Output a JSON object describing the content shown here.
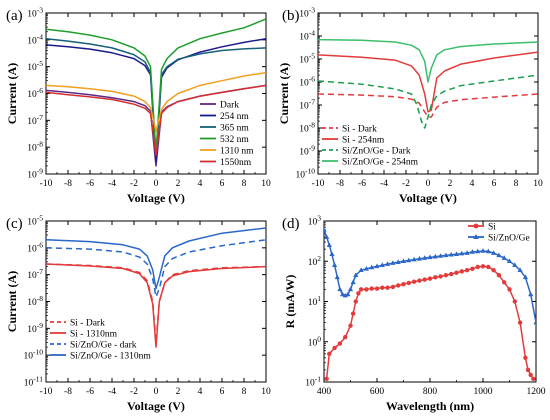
{
  "chart_data": [
    {
      "id": "a",
      "panel_label": "(a)",
      "type": "line",
      "xlabel": "Voltage (V)",
      "ylabel": "Current (A)",
      "xlim": [
        -10,
        10
      ],
      "ylim_log10": [
        -9,
        -3
      ],
      "yscale": "log",
      "x_ticks": [
        -10,
        -8,
        -6,
        -4,
        -2,
        0,
        2,
        4,
        6,
        8,
        10
      ],
      "x_tick_labels": [
        "-10",
        "-8",
        "-6",
        "-4",
        "-2",
        "0",
        "2",
        "4",
        "6",
        "8",
        "10"
      ],
      "y_tick_exponents": [
        -9,
        -8,
        -7,
        -6,
        -5,
        -4,
        -3
      ],
      "legend_position": "bottom-right",
      "series": [
        {
          "name": "Dark",
          "color": "#5b2a86",
          "style": "solid",
          "x": [
            -10,
            -8,
            -6,
            -4,
            -2,
            -1,
            -0.5,
            0,
            0.5,
            1,
            2,
            4,
            6,
            8,
            10
          ],
          "y": [
            1.3e-06,
            1.1e-06,
            9e-07,
            7e-07,
            5e-07,
            3.5e-07,
            2.2e-07,
            2e-09,
            2e-07,
            3.2e-07,
            5e-07,
            8e-07,
            1.1e-06,
            1.5e-06,
            2e-06
          ]
        },
        {
          "name": "254 nm",
          "color": "#1a1a8c",
          "style": "solid",
          "x": [
            -10,
            -8,
            -6,
            -4,
            -2,
            -1,
            -0.5,
            0,
            0.5,
            1,
            2,
            4,
            6,
            8,
            10
          ],
          "y": [
            6.5e-05,
            5.5e-05,
            4.5e-05,
            3.3e-05,
            2e-05,
            1.1e-05,
            5e-06,
            3e-09,
            4e-06,
            9e-06,
            1.8e-05,
            3.5e-05,
            5.5e-05,
            8e-05,
            0.00011
          ]
        },
        {
          "name": "365 nm",
          "color": "#17617a",
          "style": "solid",
          "x": [
            -10,
            -8,
            -6,
            -4,
            -2,
            -1,
            -0.5,
            0,
            0.5,
            1,
            2,
            4,
            6,
            8,
            10
          ],
          "y": [
            0.00011,
            9e-05,
            7e-05,
            5e-05,
            2.8e-05,
            1.5e-05,
            6e-06,
            5e-09,
            5e-06,
            1e-05,
            1.9e-05,
            3e-05,
            4e-05,
            4.6e-05,
            5e-05
          ]
        },
        {
          "name": "532 nm",
          "color": "#1f9e2e",
          "style": "solid",
          "x": [
            -10,
            -8,
            -6,
            -4,
            -2,
            -1,
            -0.5,
            0,
            0.5,
            1,
            2,
            4,
            6,
            8,
            10
          ],
          "y": [
            0.00025,
            0.0002,
            0.00015,
            0.0001,
            5e-05,
            2.5e-05,
            1e-05,
            6e-09,
            8e-06,
            2e-05,
            5e-05,
            0.00011,
            0.00018,
            0.00028,
            0.0006
          ]
        },
        {
          "name": "1310 nm",
          "color": "#f2a01f",
          "style": "solid",
          "x": [
            -10,
            -8,
            -6,
            -4,
            -2,
            -1,
            -0.5,
            0,
            0.5,
            1,
            2,
            4,
            6,
            8,
            10
          ],
          "y": [
            2e-06,
            1.8e-06,
            1.5e-06,
            1.2e-06,
            8e-07,
            5e-07,
            3e-07,
            4e-08,
            2.5e-07,
            5e-07,
            1e-06,
            2e-06,
            3e-06,
            4.5e-06,
            6e-06
          ]
        },
        {
          "name": "1550nm",
          "color": "#d42f2f",
          "style": "solid",
          "x": [
            -10,
            -8,
            -6,
            -4,
            -2,
            -1,
            -0.5,
            0,
            0.5,
            1,
            2,
            4,
            6,
            8,
            10
          ],
          "y": [
            1.1e-06,
            9e-07,
            7.5e-07,
            6e-07,
            4e-07,
            2.8e-07,
            1.8e-07,
            5e-09,
            1.8e-07,
            3e-07,
            5e-07,
            8e-07,
            1.1e-06,
            1.5e-06,
            2e-06
          ]
        }
      ]
    },
    {
      "id": "b",
      "panel_label": "(b)",
      "type": "line",
      "xlabel": "Voltage (V)",
      "ylabel": "Current (A)",
      "xlim": [
        -10,
        10
      ],
      "ylim_log10": [
        -10,
        -3
      ],
      "yscale": "log",
      "x_ticks": [
        -10,
        -8,
        -6,
        -4,
        -2,
        0,
        2,
        4,
        6,
        8,
        10
      ],
      "x_tick_labels": [
        "-10",
        "-8",
        "-6",
        "-4",
        "-2",
        "0",
        "2",
        "4",
        "6",
        "8",
        "10"
      ],
      "y_tick_exponents": [
        -10,
        -9,
        -8,
        -7,
        -6,
        -5,
        -4,
        -3
      ],
      "legend_position": "bottom-left",
      "series": [
        {
          "name": "Si - Dark",
          "color": "#e33b3b",
          "style": "dashed",
          "x": [
            -10,
            -6,
            -3,
            -1.5,
            -0.8,
            -0.3,
            0,
            0.3,
            0.8,
            1.5,
            3,
            6,
            10
          ],
          "y": [
            3e-07,
            2.7e-07,
            2.3e-07,
            1.8e-07,
            1.2e-07,
            5e-08,
            3e-08,
            3e-08,
            8e-08,
            1.3e-07,
            1.7e-07,
            2.2e-07,
            3e-07
          ]
        },
        {
          "name": "Si - 254nm",
          "color": "#e33b3b",
          "style": "solid",
          "x": [
            -10,
            -6,
            -3,
            -1.5,
            -0.8,
            -0.3,
            0,
            0.3,
            0.8,
            1.5,
            3,
            6,
            10
          ],
          "y": [
            1.5e-05,
            1.2e-05,
            9e-06,
            5e-06,
            2e-06,
            3e-07,
            5e-08,
            6e-08,
            1.5e-06,
            3e-06,
            6e-06,
            1.1e-05,
            2e-05
          ]
        },
        {
          "name": "Si/ZnO/Ge - Dark",
          "color": "#1d9e4e",
          "style": "dashed",
          "x": [
            -10,
            -6,
            -3,
            -1.5,
            -1,
            -0.6,
            -0.3,
            0,
            0.3,
            0.8,
            1.5,
            3,
            6,
            10
          ],
          "y": [
            1.1e-06,
            8e-07,
            5e-07,
            3e-07,
            1e-07,
            2e-08,
            1e-08,
            3e-08,
            1e-07,
            2.5e-07,
            4e-07,
            7e-07,
            1.1e-06,
            2e-06
          ]
        },
        {
          "name": "Si/ZnO/Ge - 254nm",
          "color": "#3bbf6a",
          "style": "solid",
          "x": [
            -10,
            -6,
            -3,
            -1.5,
            -0.8,
            -0.3,
            0,
            0.3,
            0.8,
            1.5,
            3,
            6,
            10
          ],
          "y": [
            7e-05,
            6.5e-05,
            5.5e-05,
            4e-05,
            2.5e-05,
            8e-06,
            1e-06,
            4e-06,
            1.5e-05,
            2.5e-05,
            3.5e-05,
            4.5e-05,
            5.5e-05
          ]
        }
      ]
    },
    {
      "id": "c",
      "panel_label": "(c)",
      "type": "line",
      "xlabel": "Voltage (V)",
      "ylabel": "Current (A)",
      "xlim": [
        -10,
        10
      ],
      "ylim_log10": [
        -11,
        -5
      ],
      "yscale": "log",
      "x_ticks": [
        -10,
        -8,
        -6,
        -4,
        -2,
        0,
        2,
        4,
        6,
        8,
        10
      ],
      "x_tick_labels": [
        "-10",
        "-8",
        "-6",
        "-4",
        "-2",
        "0",
        "2",
        "4",
        "6",
        "8",
        "10"
      ],
      "y_tick_exponents": [
        -11,
        -10,
        -9,
        -8,
        -7,
        -6,
        -5
      ],
      "legend_position": "bottom-left",
      "series": [
        {
          "name": "Si - Dark",
          "color": "#e33b3b",
          "style": "dashed",
          "x": [
            -10,
            -6,
            -3,
            -1.5,
            -0.8,
            -0.3,
            0,
            0.3,
            0.8,
            1.5,
            3,
            6,
            10
          ],
          "y": [
            2.5e-07,
            2.2e-07,
            1.8e-07,
            1.2e-07,
            6e-08,
            1e-08,
            3e-10,
            1e-08,
            5e-08,
            1e-07,
            1.4e-07,
            1.8e-07,
            2e-07
          ]
        },
        {
          "name": "Si - 1310nm",
          "color": "#e33b3b",
          "style": "solid",
          "x": [
            -10,
            -6,
            -3,
            -1.5,
            -0.8,
            -0.3,
            0,
            0.3,
            0.8,
            1.5,
            3,
            6,
            10
          ],
          "y": [
            2.5e-07,
            2.1e-07,
            1.7e-07,
            1.1e-07,
            5e-08,
            8e-09,
            2e-10,
            1e-08,
            5e-08,
            9e-08,
            1.3e-07,
            1.7e-07,
            2e-07
          ]
        },
        {
          "name": "Si/ZnO/Ge - dark",
          "color": "#2a67c9",
          "style": "dashed",
          "x": [
            -10,
            -6,
            -3,
            -1.5,
            -0.8,
            -0.3,
            0,
            0.3,
            0.8,
            1.5,
            3,
            6,
            10
          ],
          "y": [
            1e-06,
            9e-07,
            7e-07,
            4.5e-07,
            2.5e-07,
            7e-08,
            1.5e-08,
            3e-08,
            2e-07,
            4e-07,
            7e-07,
            1.2e-06,
            2e-06
          ]
        },
        {
          "name": "Si/ZnO/Ge - 1310nm",
          "color": "#2a67c9",
          "style": "solid",
          "x": [
            -10,
            -6,
            -3,
            -1.5,
            -0.8,
            -0.3,
            0,
            0.3,
            0.8,
            1.5,
            3,
            6,
            10
          ],
          "y": [
            2e-06,
            1.7e-06,
            1.3e-06,
            9e-07,
            5e-07,
            1.5e-07,
            3e-08,
            8e-08,
            5e-07,
            1e-06,
            1.8e-06,
            3.5e-06,
            5.5e-06
          ]
        }
      ]
    },
    {
      "id": "d",
      "panel_label": "(d)",
      "type": "line",
      "xlabel": "Wavelength (nm)",
      "ylabel": "R (mA/W)",
      "xlim": [
        400,
        1200
      ],
      "ylim_log10": [
        -1,
        3
      ],
      "yscale": "log",
      "x_ticks": [
        400,
        600,
        800,
        1000,
        1200
      ],
      "x_tick_labels": [
        "400",
        "600",
        "800",
        "1000",
        "1200"
      ],
      "y_tick_exponents": [
        -1,
        0,
        1,
        2,
        3
      ],
      "legend_position": "top-right",
      "series": [
        {
          "name": "Si",
          "color": "#e33b3b",
          "marker": "circle",
          "x": [
            410,
            420,
            440,
            460,
            480,
            500,
            510,
            520,
            530,
            540,
            560,
            580,
            600,
            620,
            640,
            660,
            680,
            700,
            720,
            740,
            760,
            780,
            800,
            820,
            840,
            860,
            880,
            900,
            920,
            940,
            960,
            980,
            1000,
            1020,
            1040,
            1060,
            1080,
            1100,
            1120,
            1140,
            1160,
            1170,
            1180,
            1190
          ],
          "y": [
            0.12,
            0.5,
            0.7,
            0.9,
            1.3,
            2.5,
            5,
            10,
            16,
            20,
            20,
            21,
            21,
            22,
            22,
            23,
            25,
            27,
            29,
            31,
            33,
            35,
            37,
            40,
            42,
            45,
            48,
            52,
            56,
            60,
            65,
            72,
            75,
            72,
            60,
            45,
            30,
            20,
            10,
            3,
            0.4,
            0.2,
            0.15,
            0.12
          ]
        },
        {
          "name": "Si/ZnO/Ge",
          "color": "#2a67c9",
          "marker": "triangle",
          "x": [
            400,
            410,
            420,
            430,
            440,
            450,
            460,
            470,
            480,
            490,
            500,
            510,
            520,
            540,
            560,
            580,
            600,
            620,
            640,
            660,
            680,
            700,
            720,
            740,
            760,
            780,
            800,
            820,
            840,
            860,
            880,
            900,
            920,
            940,
            960,
            980,
            1000,
            1020,
            1040,
            1060,
            1080,
            1100,
            1120,
            1140,
            1160,
            1180,
            1200
          ],
          "y": [
            600,
            400,
            250,
            150,
            80,
            40,
            20,
            15,
            14,
            15,
            20,
            30,
            45,
            60,
            65,
            70,
            75,
            80,
            85,
            90,
            95,
            100,
            105,
            110,
            115,
            120,
            125,
            130,
            135,
            140,
            145,
            150,
            155,
            160,
            170,
            175,
            180,
            175,
            160,
            140,
            120,
            100,
            80,
            60,
            40,
            15,
            3
          ]
        }
      ]
    }
  ]
}
